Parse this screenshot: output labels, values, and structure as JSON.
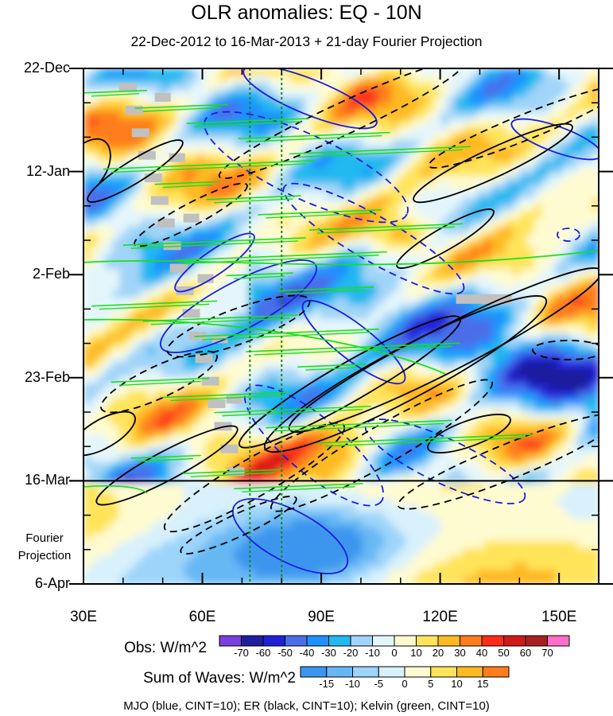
{
  "chart_data": {
    "type": "heatmap",
    "title": "OLR anomalies: EQ - 10N",
    "subtitle": "22-Dec-2012 to 16-Mar-2013 + 21-day Fourier Projection",
    "x_ticks": [
      {
        "label": "30E",
        "lon": 30
      },
      {
        "label": "60E",
        "lon": 60
      },
      {
        "label": "90E",
        "lon": 90
      },
      {
        "label": "120E",
        "lon": 120
      },
      {
        "label": "150E",
        "lon": 150
      }
    ],
    "xlim": [
      30,
      160
    ],
    "y_ticks": [
      {
        "label": "22-Dec",
        "day": 0
      },
      {
        "label": "12-Jan",
        "day": 21
      },
      {
        "label": "2-Feb",
        "day": 42
      },
      {
        "label": "23-Feb",
        "day": 63
      },
      {
        "label": "16-Mar",
        "day": 84
      },
      {
        "label": "6-Apr",
        "day": 105
      }
    ],
    "ylim": [
      0,
      105
    ],
    "projection_start_day": 84,
    "projection_label": [
      "Fourier",
      "Projection"
    ],
    "reference_longitudes": [
      72,
      80
    ],
    "obs_colorbar": {
      "label": "Obs: W/m^2",
      "levels": [
        "-70",
        "-60",
        "-50",
        "-40",
        "-30",
        "-20",
        "-10",
        "0",
        "10",
        "20",
        "30",
        "40",
        "50",
        "60",
        "70"
      ],
      "colors": [
        "#7a3fe0",
        "#1f1f9e",
        "#2020d8",
        "#4a6ee8",
        "#1e90ff",
        "#22b8f0",
        "#a0d4f8",
        "#e4f6fb",
        "#fffbd0",
        "#ffe45a",
        "#ffba22",
        "#ff7d1a",
        "#ff2a1a",
        "#d01818",
        "#a82020",
        "#ff6ec8"
      ]
    },
    "waves_colorbar": {
      "label": "Sum of Waves: W/m^2",
      "levels": [
        "-15",
        "-10",
        "-5",
        "0",
        "5",
        "10",
        "15"
      ],
      "colors": [
        "#3c96ee",
        "#66b8f4",
        "#9cd4fa",
        "#d8f1fc",
        "#fffbd0",
        "#ffe45a",
        "#ffba22",
        "#ff7d1a"
      ]
    },
    "contours": {
      "mjo": {
        "color": "#1a1adf"
      },
      "er": {
        "color": "#000000"
      },
      "kelvin": {
        "color": "#19e019"
      }
    },
    "legend_text": "MJO (blue, CINT=10); ER (black, CINT=10); Kelvin (green, CINT=10)"
  }
}
